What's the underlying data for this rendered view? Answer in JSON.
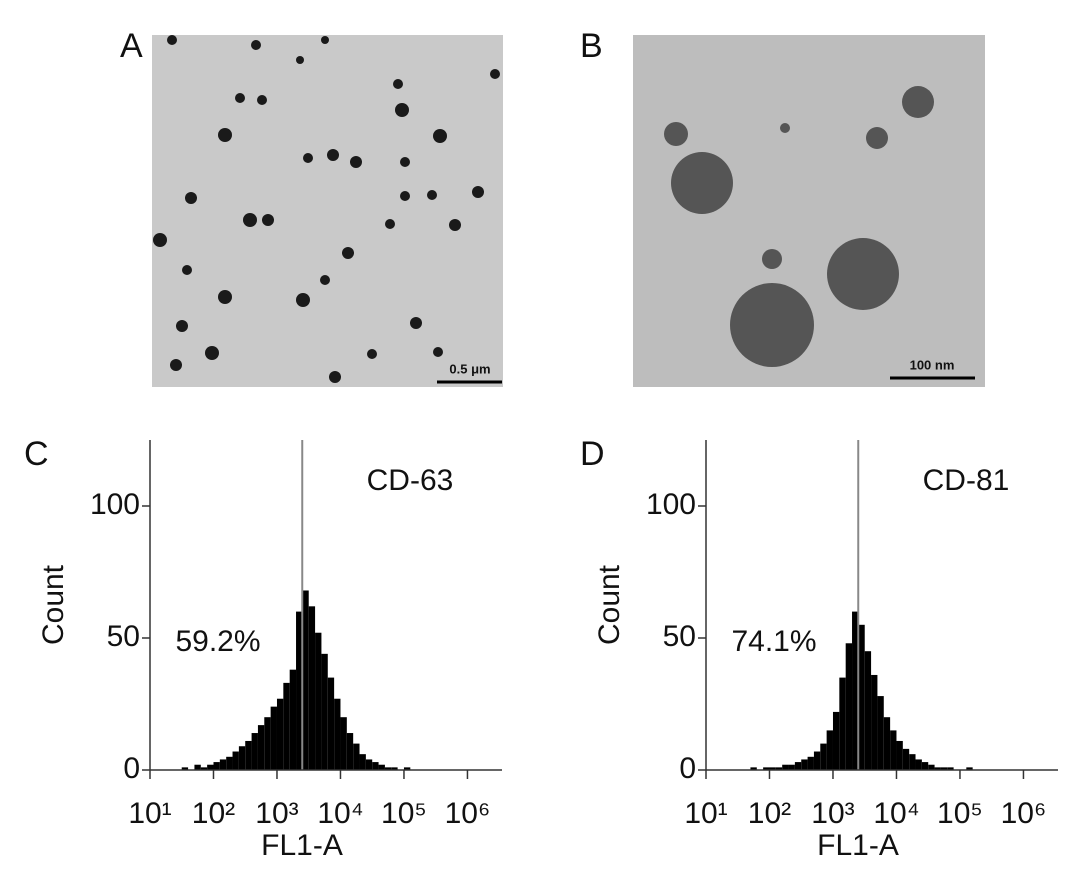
{
  "images": [
    {
      "label": "A",
      "scale_bar": "0.5 μm"
    },
    {
      "label": "B",
      "scale_bar": "100 nm"
    }
  ],
  "chart_data": [
    {
      "type": "histogram",
      "panel": "C",
      "title": "CD-63",
      "annotation": "59.2%",
      "x_label": "FL1-A",
      "y_label": "Count",
      "log_x": true,
      "color": "#000000",
      "gate": 2500,
      "bins": [
        31.6,
        39.8,
        50.1,
        63.1,
        79.4,
        100,
        125.9,
        158.5,
        199.5,
        251.2,
        316.2,
        398.1,
        501.2,
        631,
        794.3,
        1000,
        1258.9,
        1584.9,
        1995.3,
        2511.9,
        3162.3,
        3981.1,
        5011.9,
        6309.6,
        7943.3,
        10000,
        12589,
        15849,
        19953,
        25119,
        31623,
        39811,
        50119,
        63096,
        79433,
        100000,
        125893,
        158489,
        199526,
        251189,
        316228
      ],
      "values": [
        1,
        0,
        2,
        1,
        2,
        3,
        4,
        5,
        7,
        9,
        11,
        14,
        17,
        20,
        24,
        27,
        33,
        38,
        60,
        68,
        62,
        52,
        44,
        35,
        27,
        20,
        14,
        10,
        6,
        4,
        3,
        2,
        1,
        1,
        0,
        1,
        0,
        0,
        0,
        0
      ],
      "xlim": [
        10,
        3500000
      ],
      "xticks": [
        {
          "value": 10,
          "label": "10¹"
        },
        {
          "value": 100,
          "label": "10²"
        },
        {
          "value": 1000,
          "label": "10³"
        },
        {
          "value": 10000,
          "label": "10⁴"
        },
        {
          "value": 100000,
          "label": "10⁵"
        },
        {
          "value": 1000000,
          "label": "10⁶"
        }
      ],
      "ylim": [
        0,
        125
      ],
      "yticks": [
        0,
        50,
        100
      ]
    },
    {
      "type": "histogram",
      "panel": "D",
      "title": "CD-81",
      "annotation": "74.1%",
      "x_label": "FL1-A",
      "y_label": "Count",
      "log_x": true,
      "color": "#000000",
      "gate": 2500,
      "bins": [
        31.6,
        39.8,
        50.1,
        63.1,
        79.4,
        100,
        125.9,
        158.5,
        199.5,
        251.2,
        316.2,
        398.1,
        501.2,
        631,
        794.3,
        1000,
        1258.9,
        1584.9,
        1995.3,
        2511.9,
        3162.3,
        3981.1,
        5011.9,
        6309.6,
        7943.3,
        10000,
        12589,
        15849,
        19953,
        25119,
        31623,
        39811,
        50119,
        63096,
        79433,
        100000,
        125893,
        158489,
        199526,
        251189,
        316228
      ],
      "values": [
        0,
        0,
        1,
        0,
        1,
        1,
        1,
        2,
        2,
        3,
        4,
        5,
        7,
        10,
        15,
        22,
        35,
        48,
        60,
        55,
        45,
        36,
        28,
        20,
        15,
        11,
        8,
        6,
        4,
        3,
        2,
        1,
        1,
        1,
        0,
        0,
        1,
        0,
        0,
        0
      ],
      "xlim": [
        10,
        3500000
      ],
      "xticks": [
        {
          "value": 10,
          "label": "10¹"
        },
        {
          "value": 100,
          "label": "10²"
        },
        {
          "value": 1000,
          "label": "10³"
        },
        {
          "value": 10000,
          "label": "10⁴"
        },
        {
          "value": 100000,
          "label": "10⁵"
        },
        {
          "value": 1000000,
          "label": "10⁶"
        }
      ],
      "ylim": [
        0,
        125
      ],
      "yticks": [
        0,
        50,
        100
      ]
    }
  ]
}
